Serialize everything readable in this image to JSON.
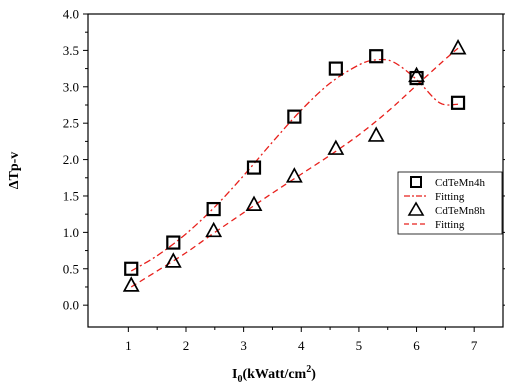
{
  "chart_data": {
    "type": "scatter",
    "title": "",
    "xlabel_main": "I",
    "xlabel_sub": "0",
    "xlabel_unit": "(kWatt/cm",
    "xlabel_sup": "2",
    "xlabel_close": ")",
    "ylabel": "ΔTp-v",
    "xlim": [
      0.3,
      7.5
    ],
    "ylim": [
      -0.3,
      4.0
    ],
    "xticks": [
      1,
      2,
      3,
      4,
      5,
      6,
      7
    ],
    "yticks": [
      0.0,
      0.5,
      1.0,
      1.5,
      2.0,
      2.5,
      3.0,
      3.5,
      4.0
    ],
    "ytick_labels": [
      "0.0",
      "0.5",
      "1.0",
      "1.5",
      "2.0",
      "2.5",
      "3.0",
      "3.5",
      "4.0"
    ],
    "legend_position": "right",
    "series": [
      {
        "name": "CdTeMn4h",
        "marker": "square",
        "x": [
          1.05,
          1.78,
          2.48,
          3.18,
          3.88,
          4.6,
          5.3,
          6.0,
          6.72
        ],
        "y": [
          0.5,
          0.86,
          1.32,
          1.89,
          2.59,
          3.25,
          3.42,
          3.12,
          2.78
        ]
      },
      {
        "name": "Fitting",
        "line": "dashdot",
        "color": "#e8201c",
        "x": [
          1.05,
          1.5,
          2.0,
          2.5,
          3.0,
          3.5,
          4.0,
          4.5,
          5.0,
          5.3,
          5.6,
          6.0,
          6.4,
          6.72
        ],
        "y": [
          0.47,
          0.68,
          0.98,
          1.35,
          1.78,
          2.24,
          2.68,
          3.05,
          3.3,
          3.37,
          3.34,
          3.1,
          2.78,
          2.76
        ]
      },
      {
        "name": "CdTeMn8h",
        "marker": "triangle",
        "x": [
          1.05,
          1.78,
          2.48,
          3.18,
          3.88,
          4.6,
          5.3,
          6.0,
          6.72
        ],
        "y": [
          0.27,
          0.6,
          1.02,
          1.38,
          1.77,
          2.15,
          2.33,
          3.15,
          3.53
        ]
      },
      {
        "name": "Fitting",
        "line": "dashed",
        "color": "#e8201c",
        "x": [
          1.05,
          1.5,
          2.0,
          2.5,
          3.0,
          3.5,
          4.0,
          4.5,
          5.0,
          5.5,
          6.0,
          6.5,
          6.72
        ],
        "y": [
          0.25,
          0.47,
          0.72,
          1.0,
          1.27,
          1.54,
          1.8,
          2.06,
          2.34,
          2.66,
          3.02,
          3.38,
          3.53
        ]
      }
    ]
  }
}
